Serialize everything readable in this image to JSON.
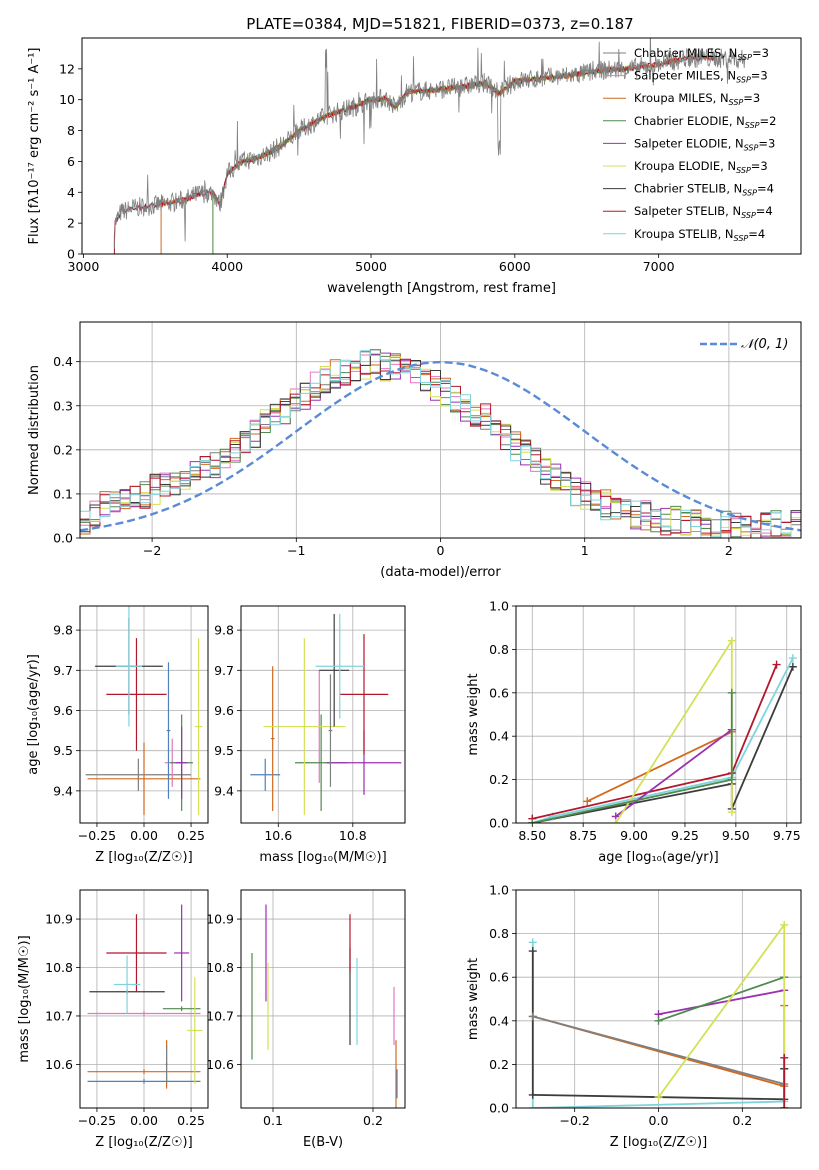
{
  "figure": {
    "title": "PLATE=0384, MJD=51821, FIBERID=0373, z=0.187"
  },
  "palette": {
    "chabrier_miles": "#7f7f7f",
    "salpeter_miles": "#e377c2",
    "kroupa_miles": "#d2691e",
    "chabrier_elodie": "#4f8a4f",
    "salpeter_elodie": "#9b30b0",
    "kroupa_elodie": "#d4e157",
    "chabrier_stelib": "#3c3c3c",
    "salpeter_stelib": "#b2182b",
    "kroupa_stelib": "#7fd4dc",
    "normal_curve": "#5b8ad6",
    "spectrum_gray": "#808080",
    "orange": "#ef7f2a",
    "blue": "#4f81bd"
  },
  "chart_data": [
    {
      "id": "spectrum",
      "type": "line",
      "title": "PLATE=0384, MJD=51821, FIBERID=0373, z=0.187",
      "xlabel": "wavelength [Angstrom, rest frame]",
      "ylabel": "Flux [fλ10⁻¹⁷ erg cm⁻² s⁻¹ A⁻¹]",
      "xlim": [
        2990,
        7990
      ],
      "ylim": [
        0,
        14
      ],
      "xticks": [
        3000,
        4000,
        5000,
        6000,
        7000
      ],
      "yticks": [
        0,
        2,
        4,
        6,
        8,
        10,
        12
      ],
      "legend_position": "right",
      "legend": [
        {
          "label": "Chabrier MILES, N_SSP=3",
          "color_key": "chabrier_miles"
        },
        {
          "label": "Salpeter MILES, N_SSP=3",
          "color_key": "salpeter_miles"
        },
        {
          "label": "Kroupa MILES, N_SSP=3",
          "color_key": "kroupa_miles"
        },
        {
          "label": "Chabrier ELODIE, N_SSP=2",
          "color_key": "chabrier_elodie"
        },
        {
          "label": "Salpeter ELODIE, N_SSP=3",
          "color_key": "salpeter_elodie"
        },
        {
          "label": "Kroupa ELODIE, N_SSP=3",
          "color_key": "kroupa_elodie"
        },
        {
          "label": "Chabrier STELIB, N_SSP=4",
          "color_key": "chabrier_stelib"
        },
        {
          "label": "Salpeter STELIB, N_SSP=4",
          "color_key": "salpeter_stelib"
        },
        {
          "label": "Kroupa STELIB, N_SSP=4",
          "color_key": "kroupa_stelib"
        }
      ],
      "continuum": [
        [
          3210,
          0
        ],
        [
          3220,
          2.0
        ],
        [
          3260,
          2.7
        ],
        [
          3350,
          3.0
        ],
        [
          3450,
          3.1
        ],
        [
          3600,
          3.3
        ],
        [
          3700,
          3.5
        ],
        [
          3800,
          3.9
        ],
        [
          3900,
          4.0
        ],
        [
          3950,
          3.2
        ],
        [
          4000,
          5.2
        ],
        [
          4100,
          6.0
        ],
        [
          4200,
          6.2
        ],
        [
          4300,
          6.6
        ],
        [
          4400,
          7.2
        ],
        [
          4500,
          8.0
        ],
        [
          4600,
          8.5
        ],
        [
          4700,
          9.0
        ],
        [
          4800,
          9.3
        ],
        [
          4900,
          9.6
        ],
        [
          5000,
          10.0
        ],
        [
          5100,
          10.1
        ],
        [
          5170,
          9.5
        ],
        [
          5250,
          10.5
        ],
        [
          5400,
          10.6
        ],
        [
          5600,
          10.8
        ],
        [
          5800,
          11.1
        ],
        [
          5890,
          10.4
        ],
        [
          6000,
          11.2
        ],
        [
          6200,
          11.4
        ],
        [
          6400,
          11.6
        ],
        [
          6600,
          11.9
        ],
        [
          6800,
          12.0
        ],
        [
          7000,
          12.3
        ],
        [
          7200,
          12.7
        ],
        [
          7400,
          12.7
        ],
        [
          7600,
          12.6
        ]
      ],
      "model_edges": {
        "elodie_start": 3900,
        "elodie_end": 6800,
        "stelib_end": 7400,
        "miles_start": 3540
      }
    },
    {
      "id": "residuals",
      "type": "step",
      "xlabel": "(data-model)/error",
      "ylabel": "Normed distribution",
      "xlim": [
        -2.5,
        2.5
      ],
      "ylim": [
        0,
        0.49
      ],
      "xticks": [
        -2,
        -1,
        0,
        1,
        2
      ],
      "yticks": [
        0.0,
        0.1,
        0.2,
        0.3,
        0.4
      ],
      "legend_position": "upper right",
      "normal_label": "𝒩(0, 1)",
      "bin_width": 0.1,
      "hist_mean": [
        0.03,
        0.06,
        0.075,
        0.085,
        0.09,
        0.095,
        0.1,
        0.11,
        0.115,
        0.125,
        0.14,
        0.15,
        0.16,
        0.17,
        0.185,
        0.2,
        0.225,
        0.24,
        0.26,
        0.275,
        0.29,
        0.305,
        0.32,
        0.345,
        0.36,
        0.37,
        0.375,
        0.385,
        0.39,
        0.395,
        0.39,
        0.385,
        0.38,
        0.37,
        0.36,
        0.345,
        0.33,
        0.315,
        0.3,
        0.285,
        0.27,
        0.25,
        0.23,
        0.21,
        0.19,
        0.17,
        0.15,
        0.135,
        0.12,
        0.105,
        0.095,
        0.085,
        0.075,
        0.068,
        0.06,
        0.055,
        0.05,
        0.045,
        0.04,
        0.038,
        0.035,
        0.032,
        0.03,
        0.028,
        0.03,
        0.03,
        0.032,
        0.03,
        0.028,
        0.03,
        0.03,
        0.03
      ]
    },
    {
      "id": "age_vs_Z",
      "type": "errorbar",
      "xlabel": "Z [log₁₀(Z/Z☉)]",
      "ylabel": "age  [log₁₀(age/yr)]",
      "xlim": [
        -0.34,
        0.34
      ],
      "ylim": [
        9.32,
        9.86
      ],
      "xticks": [
        -0.25,
        0.0,
        0.25
      ],
      "xticklabels": [
        "−0.25",
        "0.00",
        "0.25"
      ],
      "yticks": [
        9.4,
        9.5,
        9.6,
        9.7,
        9.8
      ],
      "points": [
        {
          "k": "chabrier_miles",
          "x": -0.03,
          "xe": 0.28,
          "y": 9.44,
          "ye": 0.04
        },
        {
          "k": "salpeter_miles",
          "x": 0.15,
          "xe": 0.04,
          "y": 9.47,
          "ye": 0.06
        },
        {
          "k": "kroupa_miles",
          "x": 0.0,
          "xe": 0.3,
          "y": 9.43,
          "ye": 0.09
        },
        {
          "k": "chabrier_elodie",
          "x": 0.2,
          "xe": 0.06,
          "y": 9.47,
          "ye": 0.12
        },
        {
          "k": "salpeter_elodie",
          "x": 0.2,
          "xe": 0.03,
          "y": 9.47,
          "ye": 0.09
        },
        {
          "k": "kroupa_elodie",
          "x": 0.29,
          "xe": 0.02,
          "y": 9.56,
          "ye": 0.22
        },
        {
          "k": "chabrier_stelib",
          "x": -0.08,
          "xe": 0.18,
          "y": 9.71,
          "ye": 0.12
        },
        {
          "k": "salpeter_stelib",
          "x": -0.04,
          "xe": 0.16,
          "y": 9.64,
          "ye": 0.14
        },
        {
          "k": "kroupa_stelib",
          "x": -0.08,
          "xe": 0.07,
          "y": 9.71,
          "ye": 0.15
        },
        {
          "k": "blue",
          "x": 0.13,
          "xe": 0.01,
          "y": 9.55,
          "ye": 0.17
        }
      ]
    },
    {
      "id": "age_vs_mass",
      "type": "errorbar",
      "xlabel": "mass [log₁₀(M/M☉)]",
      "ylabel": "",
      "xlim": [
        10.5,
        10.94
      ],
      "ylim": [
        9.32,
        9.86
      ],
      "xticks": [
        10.6,
        10.8
      ],
      "xticklabels": [
        "10.6",
        "10.8"
      ],
      "yticks": [
        9.4,
        9.5,
        9.6,
        9.7,
        9.8
      ],
      "points": [
        {
          "k": "blue",
          "x": 10.565,
          "xe": 0.04,
          "y": 9.44,
          "ye": 0.04
        },
        {
          "k": "kroupa_miles",
          "x": 10.585,
          "xe": 0.005,
          "y": 9.53,
          "ye": 0.18
        },
        {
          "k": "salpeter_miles",
          "x": 10.71,
          "xe": 0.005,
          "y": 9.56,
          "ye": 0.14
        },
        {
          "k": "chabrier_elodie",
          "x": 10.715,
          "xe": 0.07,
          "y": 9.47,
          "ye": 0.12
        },
        {
          "k": "salpeter_elodie",
          "x": 10.83,
          "xe": 0.1,
          "y": 9.47,
          "ye": 0.08
        },
        {
          "k": "kroupa_elodie",
          "x": 10.67,
          "xe": 0.11,
          "y": 9.56,
          "ye": 0.22
        },
        {
          "k": "chabrier_stelib",
          "x": 10.75,
          "xe": 0.04,
          "y": 9.7,
          "ye": 0.14
        },
        {
          "k": "salpeter_stelib",
          "x": 10.83,
          "xe": 0.065,
          "y": 9.64,
          "ye": 0.15
        },
        {
          "k": "kroupa_stelib",
          "x": 10.765,
          "xe": 0.065,
          "y": 9.71,
          "ye": 0.13
        },
        {
          "k": "chabrier_miles",
          "x": 10.74,
          "xe": 0.005,
          "y": 9.55,
          "ye": 0.14
        }
      ]
    },
    {
      "id": "weight_vs_age",
      "type": "line",
      "xlabel": "age  [log₁₀(age/yr)]",
      "ylabel": "mass weight",
      "xlim": [
        8.42,
        9.82
      ],
      "ylim": [
        0,
        1.0
      ],
      "xticks": [
        8.5,
        8.75,
        9.0,
        9.25,
        9.5,
        9.75
      ],
      "xticklabels": [
        "8.50",
        "8.75",
        "9.00",
        "9.25",
        "9.50",
        "9.75"
      ],
      "yticks": [
        0.0,
        0.2,
        0.4,
        0.6,
        0.8,
        1.0
      ],
      "series": [
        {
          "k": "chabrier_stelib",
          "x": [
            8.5,
            9.48,
            9.48,
            9.78
          ],
          "y": [
            0.0,
            0.18,
            0.065,
            0.72
          ]
        },
        {
          "k": "kroupa_stelib",
          "x": [
            8.5,
            8.6,
            9.48,
            9.78
          ],
          "y": [
            0.0,
            0.03,
            0.21,
            0.76
          ]
        },
        {
          "k": "salpeter_stelib",
          "x": [
            8.5,
            9.48,
            9.7
          ],
          "y": [
            0.02,
            0.23,
            0.73
          ]
        },
        {
          "k": "kroupa_miles",
          "x": [
            8.77,
            9.48
          ],
          "y": [
            0.1,
            0.42
          ]
        },
        {
          "k": "salpeter_elodie",
          "x": [
            8.91,
            9.48
          ],
          "y": [
            0.03,
            0.43
          ]
        },
        {
          "k": "kroupa_elodie",
          "x": [
            8.91,
            9.48,
            9.48
          ],
          "y": [
            0.0,
            0.84,
            0.05
          ]
        },
        {
          "k": "chabrier_elodie",
          "x": [
            8.5,
            9.48,
            9.48
          ],
          "y": [
            0.0,
            0.2,
            0.6
          ]
        }
      ]
    },
    {
      "id": "mass_vs_Z",
      "type": "errorbar",
      "xlabel": "Z [log₁₀(Z/Z☉)]",
      "ylabel": "mass [log₁₀(M/M☉)]",
      "xlim": [
        -0.34,
        0.34
      ],
      "ylim": [
        10.51,
        10.96
      ],
      "xticks": [
        -0.25,
        0.0,
        0.25
      ],
      "xticklabels": [
        "−0.25",
        "0.00",
        "0.25"
      ],
      "yticks": [
        10.6,
        10.7,
        10.8,
        10.9
      ],
      "points": [
        {
          "k": "blue",
          "x": 0.0,
          "xe": 0.3,
          "y": 10.565,
          "ye": 0.005
        },
        {
          "k": "kroupa_miles",
          "x": 0.0,
          "xe": 0.3,
          "y": 10.585,
          "ye": 0.005
        },
        {
          "k": "salpeter_miles",
          "x": 0.0,
          "xe": 0.3,
          "y": 10.705,
          "ye": 0.005
        },
        {
          "k": "chabrier_elodie",
          "x": 0.2,
          "xe": 0.1,
          "y": 10.715,
          "ye": 0.005
        },
        {
          "k": "salpeter_elodie",
          "x": 0.2,
          "xe": 0.04,
          "y": 10.83,
          "ye": 0.1
        },
        {
          "k": "kroupa_elodie",
          "x": 0.27,
          "xe": 0.04,
          "y": 10.67,
          "ye": 0.11
        },
        {
          "k": "chabrier_stelib",
          "x": -0.09,
          "xe": 0.2,
          "y": 10.75,
          "ye": 0.005
        },
        {
          "k": "salpeter_stelib",
          "x": -0.04,
          "xe": 0.16,
          "y": 10.83,
          "ye": 0.08
        },
        {
          "k": "kroupa_stelib",
          "x": -0.09,
          "xe": 0.07,
          "y": 10.765,
          "ye": 0.06
        },
        {
          "k": "kroupa_miles",
          "x": 0.12,
          "xe": 0.005,
          "y": 10.6,
          "ye": 0.05
        },
        {
          "k": "chabrier_miles",
          "x": 0.12,
          "xe": 0.005,
          "y": 10.6,
          "ye": 0.04
        }
      ]
    },
    {
      "id": "mass_vs_ebv",
      "type": "errorbar",
      "xlabel": "E(B-V)",
      "ylabel": "",
      "xlim": [
        0.068,
        0.232
      ],
      "ylim": [
        10.51,
        10.96
      ],
      "xticks": [
        0.1,
        0.2
      ],
      "xticklabels": [
        "0.1",
        "0.2"
      ],
      "yticks": [
        10.6,
        10.7,
        10.8,
        10.9
      ],
      "points": [
        {
          "k": "chabrier_elodie",
          "x": 0.079,
          "xe": 0.0,
          "y": 10.72,
          "ye": 0.11
        },
        {
          "k": "salpeter_elodie",
          "x": 0.093,
          "xe": 0.0,
          "y": 10.83,
          "ye": 0.1
        },
        {
          "k": "kroupa_elodie",
          "x": 0.095,
          "xe": 0.0,
          "y": 10.72,
          "ye": 0.09
        },
        {
          "k": "chabrier_stelib",
          "x": 0.177,
          "xe": 0.0,
          "y": 10.74,
          "ye": 0.1
        },
        {
          "k": "salpeter_stelib",
          "x": 0.177,
          "xe": 0.0,
          "y": 10.85,
          "ye": 0.06
        },
        {
          "k": "kroupa_stelib",
          "x": 0.184,
          "xe": 0.0,
          "y": 10.73,
          "ye": 0.09
        },
        {
          "k": "salpeter_miles",
          "x": 0.221,
          "xe": 0.0,
          "y": 10.7,
          "ye": 0.06
        },
        {
          "k": "kroupa_miles",
          "x": 0.223,
          "xe": 0.0,
          "y": 10.58,
          "ye": 0.07
        },
        {
          "k": "blue",
          "x": 0.224,
          "xe": 0.0,
          "y": 10.56,
          "ye": 0.03
        }
      ]
    },
    {
      "id": "weight_vs_Z",
      "type": "line",
      "xlabel": "Z [log₁₀(Z/Z☉)]",
      "ylabel": "mass weight",
      "xlim": [
        -0.34,
        0.34
      ],
      "ylim": [
        0,
        1.0
      ],
      "xticks": [
        -0.2,
        0.0,
        0.2
      ],
      "xticklabels": [
        "−0.2",
        "0.0",
        "0.2"
      ],
      "yticks": [
        0.0,
        0.2,
        0.4,
        0.6,
        0.8,
        1.0
      ],
      "series": [
        {
          "k": "kroupa_stelib",
          "x": [
            -0.3,
            -0.3,
            0.3,
            0.3
          ],
          "y": [
            0.76,
            0.0,
            0.03,
            0.18
          ]
        },
        {
          "k": "chabrier_stelib",
          "x": [
            -0.3,
            -0.3,
            0.3,
            0.3
          ],
          "y": [
            0.72,
            0.06,
            0.04,
            0.18
          ]
        },
        {
          "k": "kroupa_miles",
          "x": [
            -0.3,
            0.3,
            0.3
          ],
          "y": [
            0.42,
            0.1,
            0.47
          ]
        },
        {
          "k": "chabrier_miles",
          "x": [
            -0.3,
            0.3
          ],
          "y": [
            0.42,
            0.11
          ]
        },
        {
          "k": "salpeter_elodie",
          "x": [
            0.0,
            0.3
          ],
          "y": [
            0.43,
            0.54
          ]
        },
        {
          "k": "chabrier_elodie",
          "x": [
            0.0,
            0.3
          ],
          "y": [
            0.4,
            0.6
          ]
        },
        {
          "k": "kroupa_elodie",
          "x": [
            0.0,
            0.3,
            0.3
          ],
          "y": [
            0.05,
            0.84,
            0.0
          ]
        },
        {
          "k": "salpeter_stelib",
          "x": [
            0.3,
            0.3
          ],
          "y": [
            0.23,
            0.0
          ]
        }
      ]
    }
  ]
}
